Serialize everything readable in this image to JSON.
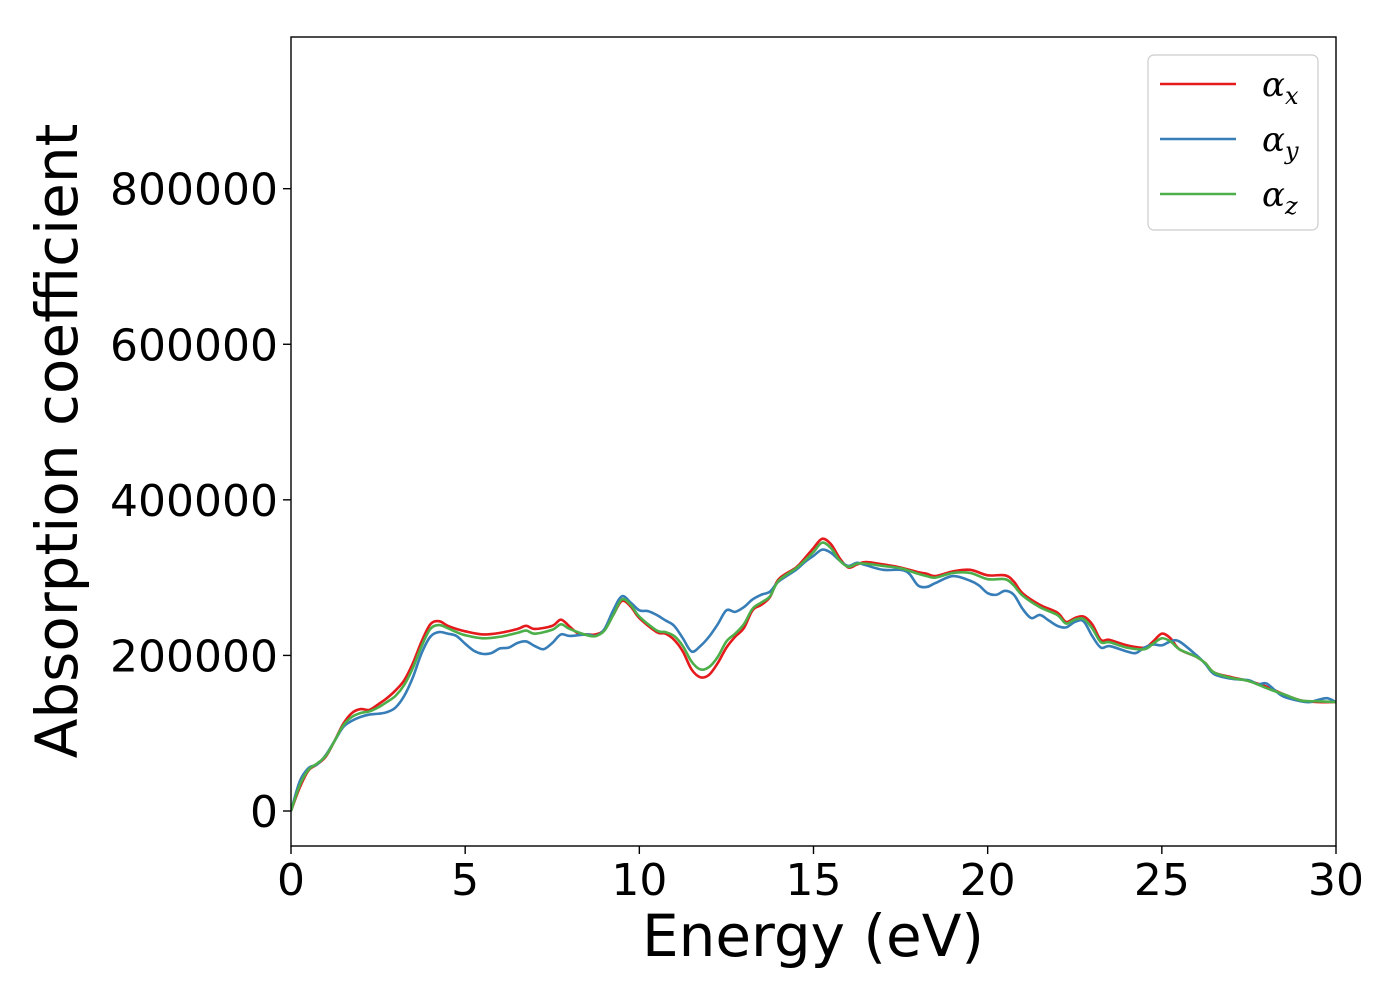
{
  "chart_data": {
    "type": "line",
    "title": "",
    "xlabel": "Energy (eV)",
    "ylabel": "Absorption coefficient",
    "xlim": [
      0,
      30
    ],
    "ylim": [
      -45000,
      995000
    ],
    "xticks": [
      0,
      5,
      10,
      15,
      20,
      25,
      30
    ],
    "yticks": [
      0,
      200000,
      400000,
      600000,
      800000
    ],
    "xtick_labels": [
      "0",
      "5",
      "10",
      "15",
      "20",
      "25",
      "30"
    ],
    "ytick_labels": [
      "0",
      "200000",
      "400000",
      "600000",
      "800000"
    ],
    "grid": false,
    "legend_position": "top-right",
    "series": [
      {
        "name": "α_x",
        "legend_main": "α",
        "legend_sub": "x",
        "color": "#e41a1c",
        "points": [
          [
            0,
            0
          ],
          [
            0.25,
            30000
          ],
          [
            0.5,
            52000
          ],
          [
            0.75,
            60000
          ],
          [
            1.0,
            70000
          ],
          [
            1.25,
            90000
          ],
          [
            1.5,
            112000
          ],
          [
            1.75,
            126000
          ],
          [
            2.0,
            131000
          ],
          [
            2.25,
            130000
          ],
          [
            2.5,
            137000
          ],
          [
            2.75,
            145000
          ],
          [
            3.0,
            155000
          ],
          [
            3.25,
            168000
          ],
          [
            3.5,
            190000
          ],
          [
            3.75,
            218000
          ],
          [
            4.0,
            240000
          ],
          [
            4.25,
            244000
          ],
          [
            4.5,
            238000
          ],
          [
            4.75,
            234000
          ],
          [
            5.0,
            231000
          ],
          [
            5.5,
            227000
          ],
          [
            6.0,
            229000
          ],
          [
            6.5,
            234000
          ],
          [
            6.75,
            238000
          ],
          [
            7.0,
            234000
          ],
          [
            7.5,
            238000
          ],
          [
            7.75,
            246000
          ],
          [
            8.0,
            237000
          ],
          [
            8.25,
            228000
          ],
          [
            8.5,
            227000
          ],
          [
            8.75,
            227000
          ],
          [
            9.0,
            233000
          ],
          [
            9.25,
            252000
          ],
          [
            9.5,
            270000
          ],
          [
            9.75,
            263000
          ],
          [
            10.0,
            248000
          ],
          [
            10.5,
            230000
          ],
          [
            10.75,
            228000
          ],
          [
            11.0,
            220000
          ],
          [
            11.25,
            205000
          ],
          [
            11.5,
            182000
          ],
          [
            11.75,
            172000
          ],
          [
            12.0,
            175000
          ],
          [
            12.25,
            190000
          ],
          [
            12.5,
            210000
          ],
          [
            12.75,
            224000
          ],
          [
            13.0,
            235000
          ],
          [
            13.25,
            258000
          ],
          [
            13.5,
            265000
          ],
          [
            13.75,
            275000
          ],
          [
            14.0,
            298000
          ],
          [
            14.5,
            313000
          ],
          [
            14.75,
            325000
          ],
          [
            15.0,
            338000
          ],
          [
            15.25,
            350000
          ],
          [
            15.5,
            343000
          ],
          [
            15.75,
            325000
          ],
          [
            16.0,
            313000
          ],
          [
            16.25,
            317000
          ],
          [
            16.5,
            320000
          ],
          [
            17.0,
            317000
          ],
          [
            17.5,
            313000
          ],
          [
            18.0,
            307000
          ],
          [
            18.25,
            305000
          ],
          [
            18.5,
            302000
          ],
          [
            19.0,
            308000
          ],
          [
            19.5,
            310000
          ],
          [
            20.0,
            303000
          ],
          [
            20.5,
            303000
          ],
          [
            20.75,
            295000
          ],
          [
            21.0,
            280000
          ],
          [
            21.5,
            265000
          ],
          [
            22.0,
            255000
          ],
          [
            22.25,
            243000
          ],
          [
            22.5,
            248000
          ],
          [
            22.75,
            250000
          ],
          [
            23.0,
            240000
          ],
          [
            23.25,
            220000
          ],
          [
            23.5,
            220000
          ],
          [
            24.0,
            213000
          ],
          [
            24.5,
            210000
          ],
          [
            24.75,
            218000
          ],
          [
            25.0,
            228000
          ],
          [
            25.25,
            222000
          ],
          [
            25.5,
            208000
          ],
          [
            26.0,
            198000
          ],
          [
            26.25,
            190000
          ],
          [
            26.5,
            178000
          ],
          [
            27.0,
            172000
          ],
          [
            27.5,
            167000
          ],
          [
            28.0,
            160000
          ],
          [
            28.5,
            150000
          ],
          [
            29.0,
            142000
          ],
          [
            29.5,
            140000
          ],
          [
            30.0,
            140000
          ]
        ]
      },
      {
        "name": "α_y",
        "legend_main": "α",
        "legend_sub": "y",
        "color": "#377eb8",
        "points": [
          [
            0,
            0
          ],
          [
            0.25,
            38000
          ],
          [
            0.5,
            55000
          ],
          [
            0.75,
            60000
          ],
          [
            1.0,
            72000
          ],
          [
            1.25,
            90000
          ],
          [
            1.5,
            108000
          ],
          [
            1.75,
            116000
          ],
          [
            2.0,
            121000
          ],
          [
            2.25,
            124000
          ],
          [
            2.5,
            125000
          ],
          [
            2.75,
            127000
          ],
          [
            3.0,
            133000
          ],
          [
            3.25,
            148000
          ],
          [
            3.5,
            172000
          ],
          [
            3.75,
            203000
          ],
          [
            4.0,
            224000
          ],
          [
            4.25,
            230000
          ],
          [
            4.5,
            228000
          ],
          [
            4.75,
            225000
          ],
          [
            5.0,
            215000
          ],
          [
            5.25,
            206000
          ],
          [
            5.5,
            202000
          ],
          [
            5.75,
            203000
          ],
          [
            6.0,
            209000
          ],
          [
            6.25,
            210000
          ],
          [
            6.5,
            216000
          ],
          [
            6.75,
            218000
          ],
          [
            7.0,
            212000
          ],
          [
            7.25,
            208000
          ],
          [
            7.5,
            216000
          ],
          [
            7.75,
            227000
          ],
          [
            8.0,
            225000
          ],
          [
            8.5,
            227000
          ],
          [
            8.75,
            225000
          ],
          [
            9.0,
            234000
          ],
          [
            9.25,
            258000
          ],
          [
            9.5,
            276000
          ],
          [
            9.75,
            268000
          ],
          [
            10.0,
            258000
          ],
          [
            10.25,
            257000
          ],
          [
            10.5,
            252000
          ],
          [
            10.75,
            245000
          ],
          [
            11.0,
            238000
          ],
          [
            11.25,
            222000
          ],
          [
            11.5,
            205000
          ],
          [
            11.75,
            212000
          ],
          [
            12.0,
            224000
          ],
          [
            12.25,
            240000
          ],
          [
            12.5,
            258000
          ],
          [
            12.75,
            256000
          ],
          [
            13.0,
            262000
          ],
          [
            13.25,
            272000
          ],
          [
            13.5,
            278000
          ],
          [
            13.75,
            282000
          ],
          [
            14.0,
            295000
          ],
          [
            14.5,
            310000
          ],
          [
            14.75,
            320000
          ],
          [
            15.0,
            328000
          ],
          [
            15.25,
            336000
          ],
          [
            15.5,
            332000
          ],
          [
            15.75,
            322000
          ],
          [
            16.0,
            315000
          ],
          [
            16.25,
            319000
          ],
          [
            16.5,
            316000
          ],
          [
            17.0,
            310000
          ],
          [
            17.5,
            310000
          ],
          [
            17.75,
            305000
          ],
          [
            18.0,
            290000
          ],
          [
            18.25,
            288000
          ],
          [
            18.5,
            293000
          ],
          [
            19.0,
            302000
          ],
          [
            19.5,
            296000
          ],
          [
            19.75,
            290000
          ],
          [
            20.0,
            280000
          ],
          [
            20.25,
            278000
          ],
          [
            20.5,
            283000
          ],
          [
            20.75,
            278000
          ],
          [
            21.0,
            260000
          ],
          [
            21.25,
            248000
          ],
          [
            21.5,
            252000
          ],
          [
            21.75,
            245000
          ],
          [
            22.0,
            238000
          ],
          [
            22.25,
            236000
          ],
          [
            22.5,
            243000
          ],
          [
            22.75,
            244000
          ],
          [
            23.0,
            225000
          ],
          [
            23.25,
            210000
          ],
          [
            23.5,
            212000
          ],
          [
            24.0,
            205000
          ],
          [
            24.25,
            203000
          ],
          [
            24.5,
            210000
          ],
          [
            24.75,
            214000
          ],
          [
            25.0,
            213000
          ],
          [
            25.25,
            218000
          ],
          [
            25.5,
            218000
          ],
          [
            26.0,
            200000
          ],
          [
            26.25,
            189000
          ],
          [
            26.5,
            176000
          ],
          [
            27.0,
            170000
          ],
          [
            27.5,
            168000
          ],
          [
            27.75,
            163000
          ],
          [
            28.0,
            164000
          ],
          [
            28.25,
            155000
          ],
          [
            28.5,
            147000
          ],
          [
            29.0,
            141000
          ],
          [
            29.25,
            140000
          ],
          [
            29.5,
            143000
          ],
          [
            29.75,
            145000
          ],
          [
            30.0,
            140000
          ]
        ]
      },
      {
        "name": "α_z",
        "legend_main": "α",
        "legend_sub": "z",
        "color": "#4daf4a",
        "points": [
          [
            0,
            0
          ],
          [
            0.25,
            33000
          ],
          [
            0.5,
            53000
          ],
          [
            0.75,
            61000
          ],
          [
            1.0,
            71000
          ],
          [
            1.25,
            90000
          ],
          [
            1.5,
            110000
          ],
          [
            1.75,
            121000
          ],
          [
            2.0,
            126000
          ],
          [
            2.25,
            128000
          ],
          [
            2.5,
            133000
          ],
          [
            2.75,
            140000
          ],
          [
            3.0,
            148000
          ],
          [
            3.25,
            162000
          ],
          [
            3.5,
            184000
          ],
          [
            3.75,
            212000
          ],
          [
            4.0,
            234000
          ],
          [
            4.25,
            239000
          ],
          [
            4.5,
            235000
          ],
          [
            4.75,
            230000
          ],
          [
            5.0,
            226000
          ],
          [
            5.5,
            222000
          ],
          [
            6.0,
            224000
          ],
          [
            6.5,
            229000
          ],
          [
            6.75,
            232000
          ],
          [
            7.0,
            228000
          ],
          [
            7.5,
            233000
          ],
          [
            7.75,
            240000
          ],
          [
            8.0,
            234000
          ],
          [
            8.5,
            226000
          ],
          [
            8.75,
            225000
          ],
          [
            9.0,
            232000
          ],
          [
            9.25,
            252000
          ],
          [
            9.5,
            272000
          ],
          [
            9.75,
            265000
          ],
          [
            10.0,
            250000
          ],
          [
            10.5,
            232000
          ],
          [
            10.75,
            230000
          ],
          [
            11.0,
            225000
          ],
          [
            11.25,
            212000
          ],
          [
            11.5,
            192000
          ],
          [
            11.75,
            182000
          ],
          [
            12.0,
            185000
          ],
          [
            12.25,
            198000
          ],
          [
            12.5,
            218000
          ],
          [
            12.75,
            228000
          ],
          [
            13.0,
            240000
          ],
          [
            13.25,
            260000
          ],
          [
            13.5,
            268000
          ],
          [
            13.75,
            276000
          ],
          [
            14.0,
            296000
          ],
          [
            14.5,
            312000
          ],
          [
            14.75,
            322000
          ],
          [
            15.0,
            333000
          ],
          [
            15.25,
            345000
          ],
          [
            15.5,
            338000
          ],
          [
            15.75,
            322000
          ],
          [
            16.0,
            314000
          ],
          [
            16.25,
            318000
          ],
          [
            16.5,
            318000
          ],
          [
            17.0,
            315000
          ],
          [
            17.5,
            312000
          ],
          [
            18.0,
            305000
          ],
          [
            18.25,
            302000
          ],
          [
            18.5,
            300000
          ],
          [
            19.0,
            306000
          ],
          [
            19.5,
            306000
          ],
          [
            20.0,
            298000
          ],
          [
            20.5,
            298000
          ],
          [
            20.75,
            290000
          ],
          [
            21.0,
            277000
          ],
          [
            21.5,
            262000
          ],
          [
            22.0,
            252000
          ],
          [
            22.25,
            241000
          ],
          [
            22.5,
            246000
          ],
          [
            22.75,
            247000
          ],
          [
            23.0,
            235000
          ],
          [
            23.25,
            217000
          ],
          [
            23.5,
            217000
          ],
          [
            24.0,
            210000
          ],
          [
            24.5,
            208000
          ],
          [
            24.75,
            215000
          ],
          [
            25.0,
            222000
          ],
          [
            25.25,
            218000
          ],
          [
            25.5,
            208000
          ],
          [
            26.0,
            198000
          ],
          [
            26.25,
            190000
          ],
          [
            26.5,
            178000
          ],
          [
            27.0,
            171000
          ],
          [
            27.5,
            167000
          ],
          [
            28.0,
            158000
          ],
          [
            28.5,
            150000
          ],
          [
            29.0,
            142000
          ],
          [
            29.5,
            141000
          ],
          [
            30.0,
            140000
          ]
        ]
      }
    ]
  }
}
